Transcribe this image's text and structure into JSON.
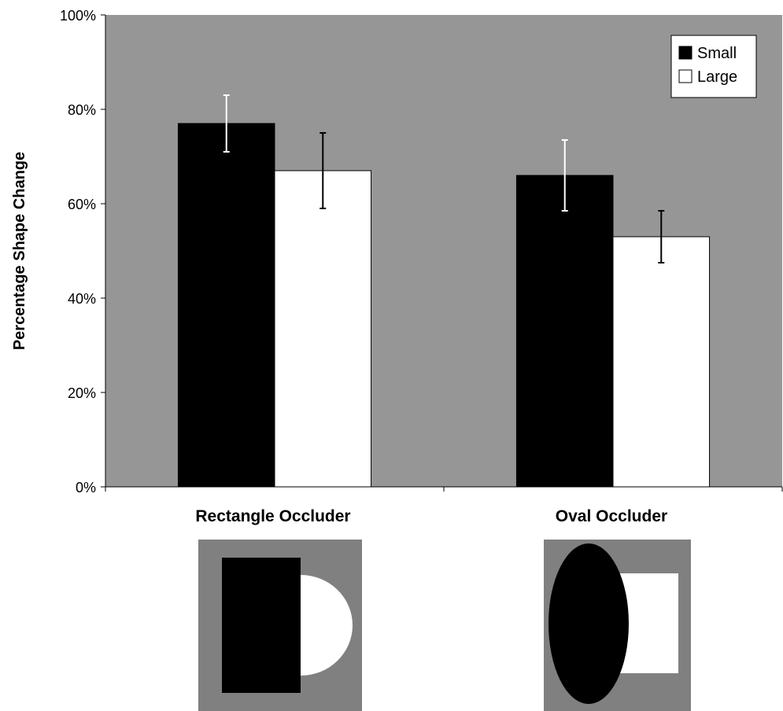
{
  "chart_data": {
    "type": "bar",
    "ylabel": "Percentage Shape Change",
    "xlabel": "",
    "title": "",
    "categories": [
      "Rectangle Occluder",
      "Oval Occluder"
    ],
    "y_ticks": [
      "0%",
      "20%",
      "40%",
      "60%",
      "80%",
      "100%"
    ],
    "ylim": [
      0,
      100
    ],
    "grid": false,
    "legend_position": "top-right",
    "series": [
      {
        "name": "Small",
        "color": "#000000",
        "values": [
          77,
          66
        ],
        "error": [
          6,
          7.5
        ]
      },
      {
        "name": "Large",
        "color": "#ffffff",
        "values": [
          67,
          53
        ],
        "error": [
          8,
          5.5
        ]
      }
    ],
    "plot_background": "#969696"
  },
  "illustrations": [
    {
      "name": "rectangle-occluder-illustration",
      "occluder": "rectangle",
      "occluded": "semicircle"
    },
    {
      "name": "oval-occluder-illustration",
      "occluder": "oval",
      "occluded": "rectangle"
    }
  ],
  "colors": {
    "illustration_background": "#808080",
    "occluder": "#000000",
    "occluded": "#ffffff"
  }
}
